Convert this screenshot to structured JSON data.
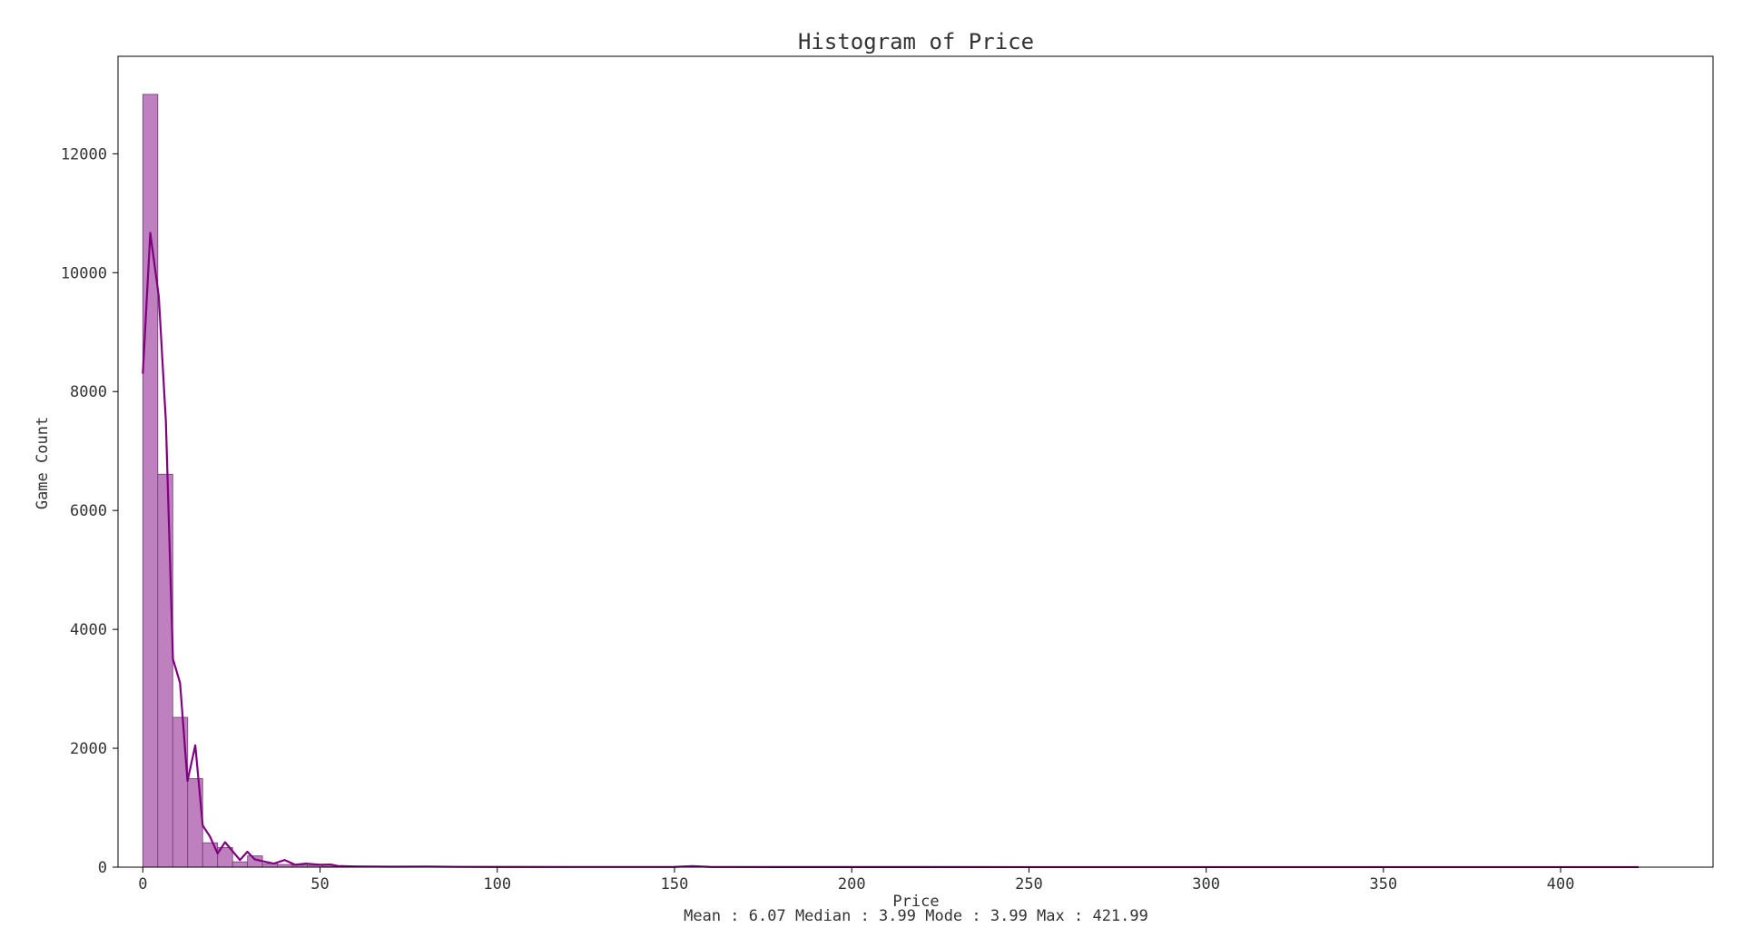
{
  "chart_data": {
    "type": "bar",
    "title": "Histogram of Price",
    "xlabel": "Price",
    "ylabel": "Game Count",
    "caption": "Mean : 6.07 Median : 3.99 Mode : 3.99 Max : 421.99",
    "xlim": [
      -7,
      443
    ],
    "ylim": [
      0,
      13640
    ],
    "xticks": [
      0,
      50,
      100,
      150,
      200,
      250,
      300,
      350,
      400
    ],
    "yticks": [
      0,
      2000,
      4000,
      6000,
      8000,
      10000,
      12000
    ],
    "bin_width": 4.2199,
    "bins": [
      {
        "x0": 0.0,
        "count": 13000
      },
      {
        "x0": 4.22,
        "count": 6610
      },
      {
        "x0": 8.44,
        "count": 2520
      },
      {
        "x0": 12.66,
        "count": 1490
      },
      {
        "x0": 16.88,
        "count": 410
      },
      {
        "x0": 21.1,
        "count": 330
      },
      {
        "x0": 25.32,
        "count": 90
      },
      {
        "x0": 29.54,
        "count": 190
      },
      {
        "x0": 33.76,
        "count": 60
      },
      {
        "x0": 37.98,
        "count": 45
      },
      {
        "x0": 42.2,
        "count": 35
      },
      {
        "x0": 46.42,
        "count": 30
      },
      {
        "x0": 50.64,
        "count": 15
      },
      {
        "x0": 54.86,
        "count": 8
      },
      {
        "x0": 59.08,
        "count": 12
      },
      {
        "x0": 63.3,
        "count": 5
      },
      {
        "x0": 67.52,
        "count": 4
      },
      {
        "x0": 71.74,
        "count": 4
      },
      {
        "x0": 75.96,
        "count": 6
      },
      {
        "x0": 80.18,
        "count": 3
      },
      {
        "x0": 84.4,
        "count": 2
      },
      {
        "x0": 88.62,
        "count": 2
      },
      {
        "x0": 97.06,
        "count": 3
      },
      {
        "x0": 101.28,
        "count": 2
      },
      {
        "x0": 109.72,
        "count": 1
      },
      {
        "x0": 118.16,
        "count": 1
      },
      {
        "x0": 126.6,
        "count": 1
      },
      {
        "x0": 151.92,
        "count": 10
      },
      {
        "x0": 172.99,
        "count": 1
      },
      {
        "x0": 202.55,
        "count": 2
      },
      {
        "x0": 253.19,
        "count": 1
      },
      {
        "x0": 303.83,
        "count": 1
      },
      {
        "x0": 417.77,
        "count": 1
      }
    ],
    "line": {
      "x": [
        0,
        2.1,
        4.5,
        6.5,
        8.5,
        10.5,
        12.6,
        14.8,
        16.9,
        18.9,
        21.1,
        23.2,
        25.3,
        27.4,
        29.5,
        31.6,
        33.8,
        37,
        40,
        43,
        46,
        50,
        53,
        55,
        60,
        70,
        80,
        90,
        100,
        120,
        140,
        150,
        155,
        160,
        180,
        200,
        250,
        300,
        350,
        400,
        422
      ],
      "y": [
        8300,
        10670,
        9600,
        7500,
        3500,
        3100,
        1450,
        2050,
        700,
        520,
        230,
        420,
        270,
        120,
        260,
        130,
        100,
        60,
        120,
        40,
        60,
        40,
        45,
        20,
        12,
        8,
        10,
        5,
        4,
        3,
        3,
        4,
        18,
        4,
        2,
        2,
        1,
        1,
        1,
        1,
        1
      ]
    },
    "bar_fill": "#bf80bf",
    "bar_edge": "#6e3d6e",
    "line_color": "#800080",
    "grid": false
  }
}
